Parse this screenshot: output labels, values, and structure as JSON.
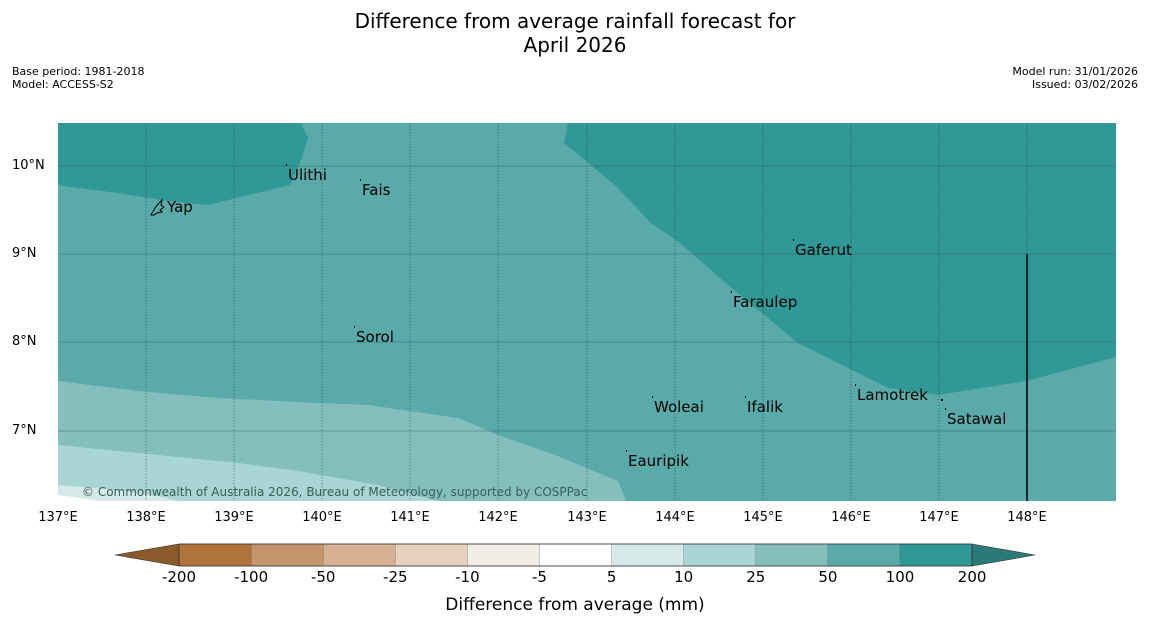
{
  "title": {
    "line1": "Difference from average rainfall forecast for",
    "line2": "April 2026"
  },
  "meta": {
    "base_period": "Base period: 1981-2018",
    "model": "Model: ACCESS-S2",
    "model_run": "Model run: 31/01/2026",
    "issued": "Issued: 03/02/2026"
  },
  "axes": {
    "latitudes": [
      "10°N",
      "9°N",
      "8°N",
      "7°N"
    ],
    "longitudes": [
      "137°E",
      "138°E",
      "139°E",
      "140°E",
      "141°E",
      "142°E",
      "143°E",
      "144°E",
      "145°E",
      "146°E",
      "147°E",
      "148°E"
    ]
  },
  "places": [
    {
      "name": "Ulithi"
    },
    {
      "name": "Fais"
    },
    {
      "name": "Yap"
    },
    {
      "name": "Gaferut"
    },
    {
      "name": "Faraulep"
    },
    {
      "name": "Sorol"
    },
    {
      "name": "Lamotrek"
    },
    {
      "name": "Satawal"
    },
    {
      "name": "Woleai"
    },
    {
      "name": "Ifalik"
    },
    {
      "name": "Eauripik"
    }
  ],
  "copyright": "© Commonwealth of Australia 2026, Bureau of Meteorology, supported by COSPPac",
  "colorbar": {
    "title": "Difference from average (mm)",
    "labels": [
      "-200",
      "-100",
      "-50",
      "-25",
      "-10",
      "-5",
      "5",
      "10",
      "25",
      "50",
      "100",
      "200"
    ],
    "colors": [
      "#b07339",
      "#c4956a",
      "#d6b293",
      "#e6d1bf",
      "#f1ede7",
      "#ffffff",
      "#d4e9e8",
      "#a9d5d4",
      "#84bfbd",
      "#5aaaa9",
      "#309896"
    ],
    "low_color": "#8a5a2b",
    "high_color": "#2a7a78"
  },
  "map_colors": {
    "c100": "#5aaaa9",
    "c200": "#309896",
    "c50": "#84bfbd",
    "c25": "#a9d5d4",
    "c10": "#d4e9e8",
    "c5": "#ffffff"
  }
}
